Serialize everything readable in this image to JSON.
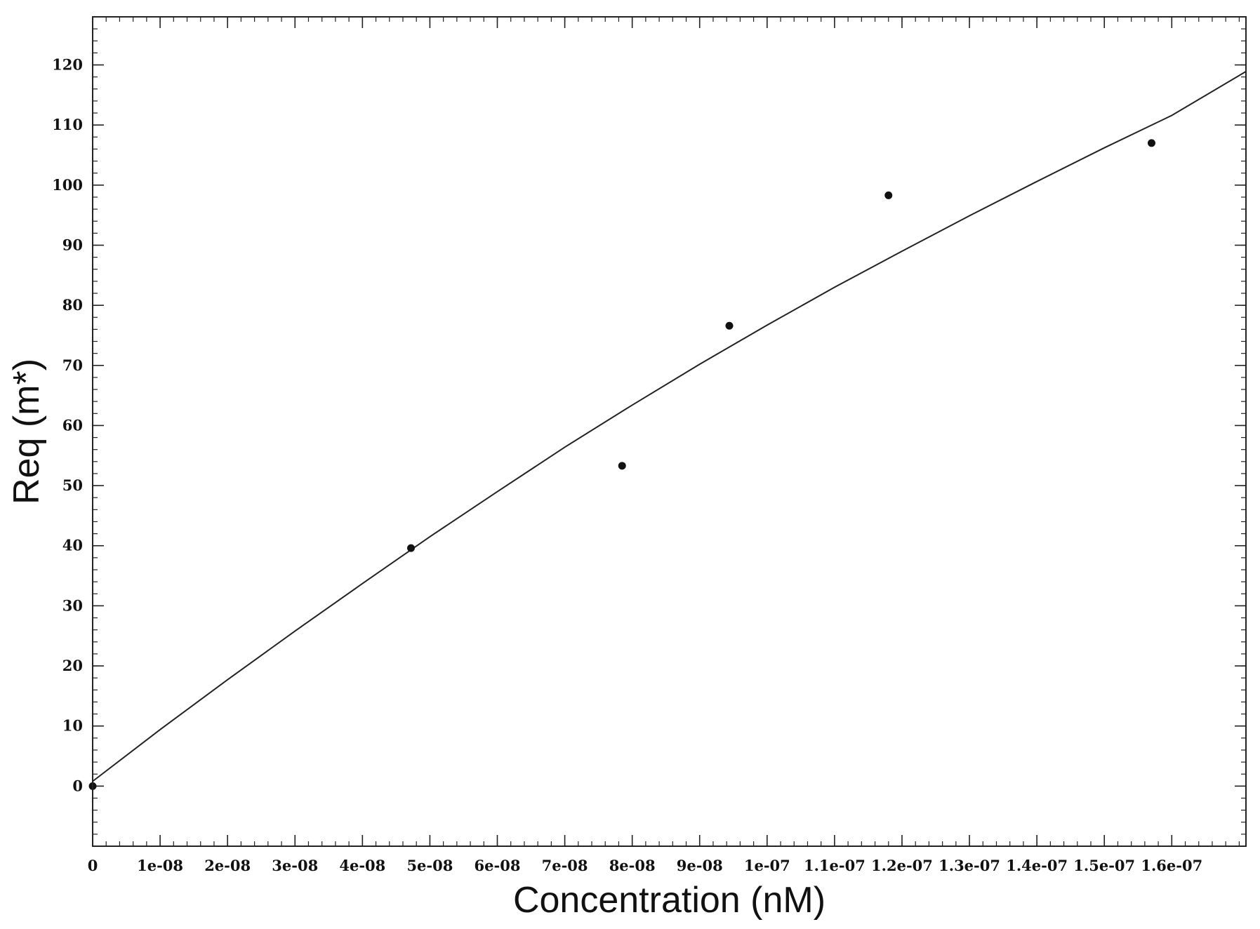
{
  "chart_data": {
    "type": "scatter",
    "xlabel": "Concentration (nM)",
    "ylabel": "Req (m*)",
    "xlim": [
      0,
      1.71e-07
    ],
    "ylim": [
      -10,
      128
    ],
    "x_ticks": [
      0,
      1e-08,
      2e-08,
      3e-08,
      4e-08,
      5e-08,
      6e-08,
      7e-08,
      8e-08,
      9e-08,
      1e-07,
      1.1e-07,
      1.2e-07,
      1.3e-07,
      1.4e-07,
      1.5e-07,
      1.6e-07
    ],
    "x_tick_labels": [
      "0",
      "1e-08",
      "2e-08",
      "3e-08",
      "4e-08",
      "5e-08",
      "6e-08",
      "7e-08",
      "8e-08",
      "9e-08",
      "1e-07",
      "1.1e-07",
      "1.2e-07",
      "1.3e-07",
      "1.4e-07",
      "1.5e-07",
      "1.6e-07"
    ],
    "y_ticks": [
      0,
      10,
      20,
      30,
      40,
      50,
      60,
      70,
      80,
      90,
      100,
      110,
      120
    ],
    "y_tick_labels": [
      "0",
      "10",
      "20",
      "30",
      "40",
      "50",
      "60",
      "70",
      "80",
      "90",
      "100",
      "110",
      "120"
    ],
    "grid": false,
    "series": [
      {
        "kind": "points",
        "x": [
          0,
          4.72e-08,
          7.85e-08,
          9.44e-08,
          1.18e-07,
          1.57e-07
        ],
        "y": [
          0,
          39.6,
          53.3,
          76.6,
          98.3,
          107.0
        ],
        "color": "#111111"
      },
      {
        "kind": "fit-line",
        "x": [
          0,
          1e-08,
          2e-08,
          3e-08,
          4e-08,
          5e-08,
          6e-08,
          7e-08,
          8e-08,
          9e-08,
          1e-07,
          1.1e-07,
          1.2e-07,
          1.3e-07,
          1.4e-07,
          1.5e-07,
          1.6e-07,
          1.71e-07
        ],
        "y": [
          0.8,
          9.4,
          17.7,
          25.8,
          33.7,
          41.5,
          49.0,
          56.4,
          63.4,
          70.2,
          76.7,
          83.0,
          89.0,
          94.9,
          100.6,
          106.2,
          111.6,
          118.9
        ],
        "color": "#222222"
      }
    ]
  }
}
